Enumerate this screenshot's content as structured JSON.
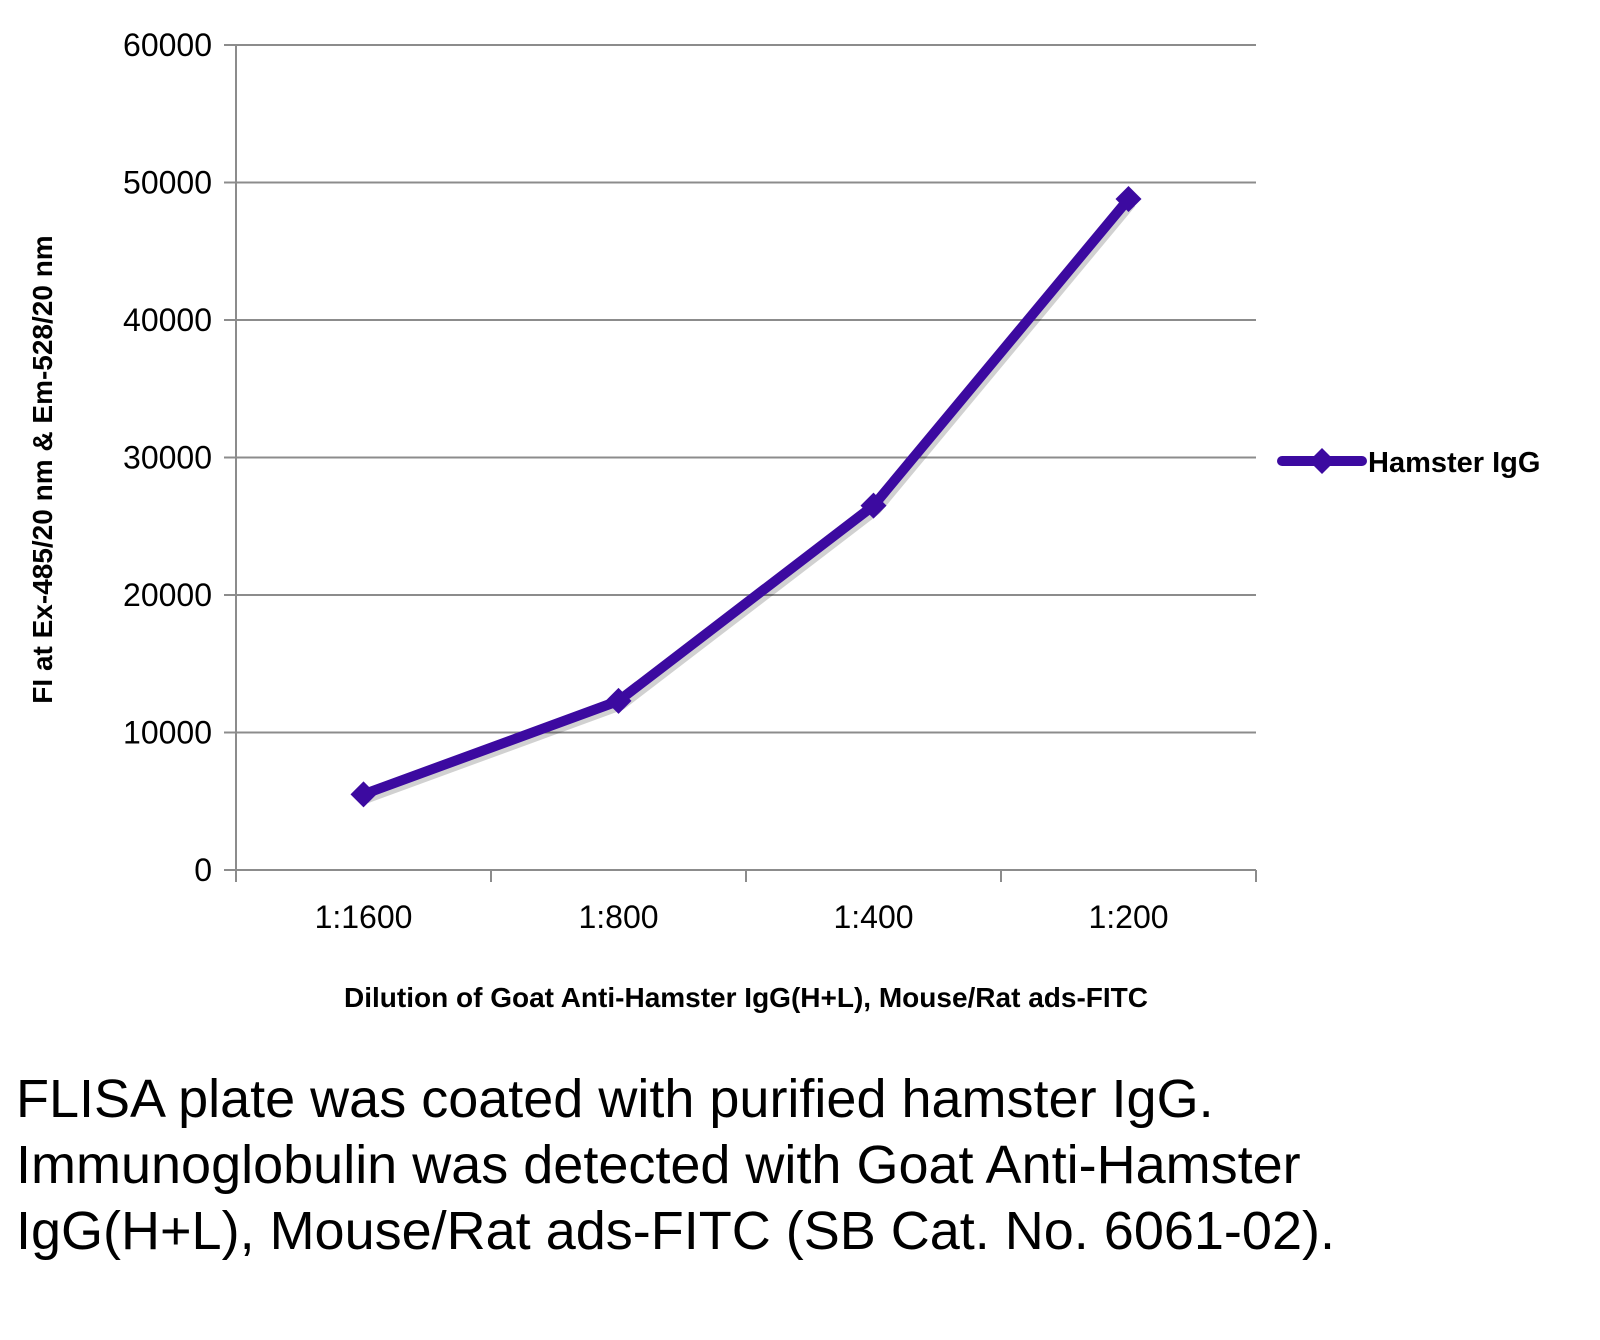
{
  "colors": {
    "series": "#3c0aa0",
    "grid": "#8c8c8c",
    "axis": "#8c8c8c"
  },
  "chart_data": {
    "type": "line",
    "title": "",
    "categories": [
      "1:1600",
      "1:800",
      "1:400",
      "1:200"
    ],
    "series": [
      {
        "name": "Hamster IgG",
        "values": [
          5500,
          12300,
          26500,
          48800
        ],
        "marker": "diamond"
      }
    ],
    "xlabel": "Dilution of Goat Anti-Hamster IgG(H+L), Mouse/Rat ads-FITC",
    "ylabel": "FI at Ex-485/20 nm & Em-528/20 nm",
    "ylim": [
      0,
      60000
    ],
    "yticks": [
      0,
      10000,
      20000,
      30000,
      40000,
      50000,
      60000
    ],
    "grid": true,
    "legend_position": "right"
  },
  "caption": "FLISA plate was coated with purified hamster IgG.  Immunoglobulin was detected with Goat Anti-Hamster IgG(H+L), Mouse/Rat ads-FITC (SB Cat. No. 6061-02)."
}
